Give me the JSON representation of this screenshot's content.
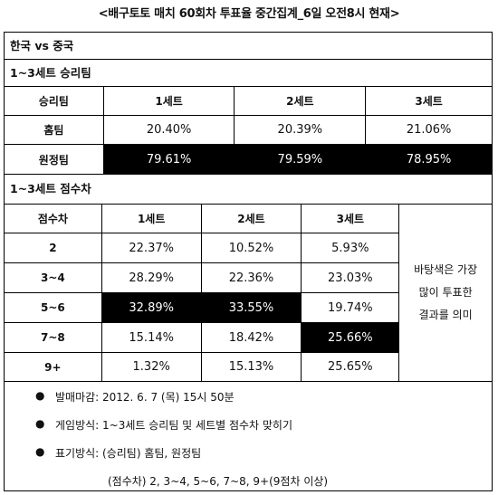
{
  "title": "<배구토토 매치 60회차 투표율 중간집계_6일 오전8시 현재>",
  "match": "한국 vs 중국",
  "section1": {
    "heading": "1~3세트 승리팀",
    "headers": [
      "승리팀",
      "1세트",
      "2세트",
      "3세트"
    ],
    "rows": [
      {
        "label": "홈팀",
        "values": [
          "20.40%",
          "20.39%",
          "21.06%"
        ]
      },
      {
        "label": "원정팀",
        "values": [
          "79.61%",
          "79.59%",
          "78.95%"
        ]
      }
    ]
  },
  "section2": {
    "heading": "1~3세트 점수차",
    "headers": [
      "점수차",
      "1세트",
      "2세트",
      "3세트"
    ],
    "rows": [
      {
        "label": "2",
        "values": [
          "22.37%",
          "10.52%",
          "5.93%"
        ]
      },
      {
        "label": "3~4",
        "values": [
          "28.29%",
          "22.36%",
          "23.03%"
        ]
      },
      {
        "label": "5~6",
        "values": [
          "32.89%",
          "33.55%",
          "19.74%"
        ]
      },
      {
        "label": "7~8",
        "values": [
          "15.14%",
          "18.42%",
          "25.66%"
        ]
      },
      {
        "label": "9+",
        "values": [
          "1.32%",
          "15.13%",
          "25.65%"
        ]
      }
    ],
    "note": [
      "바탕색은 가장",
      "많이 투표한",
      "결과를 의미"
    ]
  },
  "notes": {
    "bullet": "●",
    "deadline": "발매마감: 2012. 6. 7 (목) 15시 50분",
    "method": "게임방식: 1~3세트 승리팀 및 세트별 점수차 맞히기",
    "notation": "표기방식: (승리팀) 홈팀, 원정팀",
    "notation_sub": "(점수차) 2, 3~4, 5~6, 7~8, 9+(9점차 이상)"
  }
}
